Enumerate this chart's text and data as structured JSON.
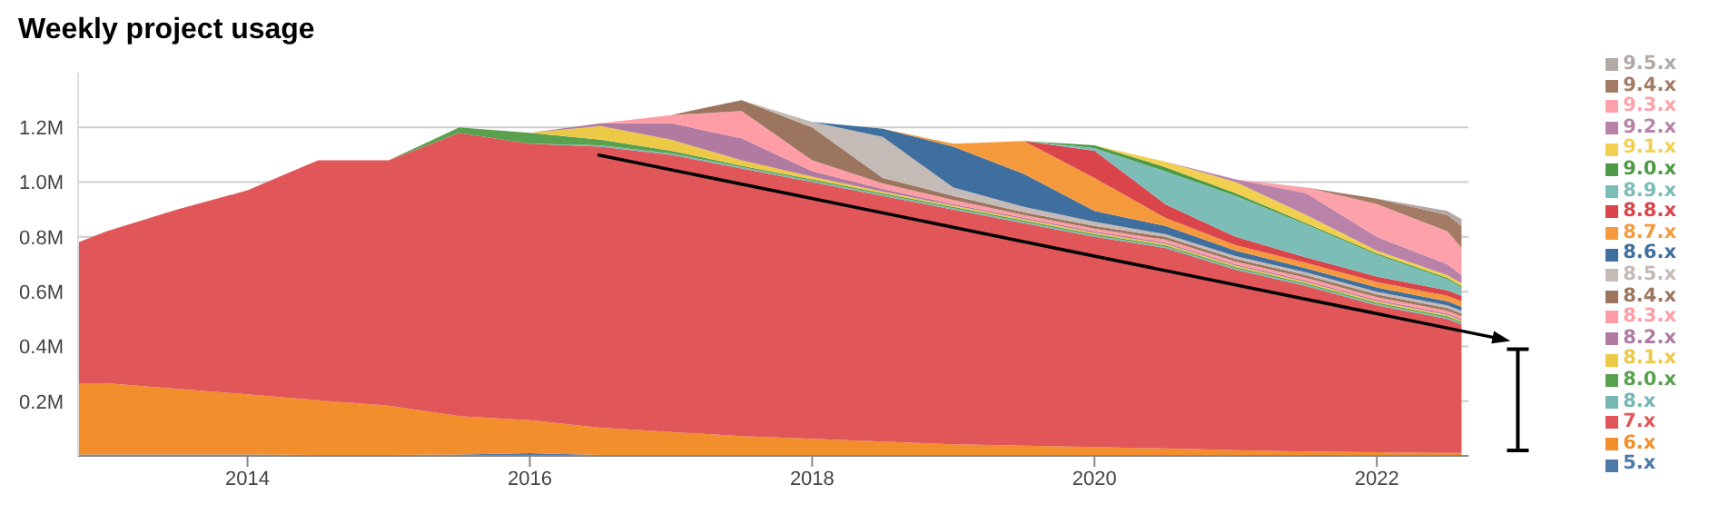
{
  "chart_data": {
    "type": "area",
    "title": "Weekly project usage",
    "stacked": true,
    "grid": "y",
    "legend": "right",
    "x": [
      2012.8,
      2013,
      2013.5,
      2014,
      2014.5,
      2015,
      2015.5,
      2016,
      2016.5,
      2017,
      2017.5,
      2018,
      2018.5,
      2019,
      2019.5,
      2020,
      2020.5,
      2021,
      2021.5,
      2022,
      2022.5,
      2022.6
    ],
    "xlim": [
      2012.8,
      2022.65
    ],
    "xticks": [
      2014,
      2016,
      2018,
      2020,
      2022
    ],
    "ylim": [
      0,
      1.4
    ],
    "yticks": [
      {
        "value": 0.2,
        "label": "0.2M"
      },
      {
        "value": 0.4,
        "label": "0.4M"
      },
      {
        "value": 0.6,
        "label": "0.6M"
      },
      {
        "value": 0.8,
        "label": "0.8M"
      },
      {
        "value": 1.0,
        "label": "1.0M"
      },
      {
        "value": 1.2,
        "label": "1.2M"
      }
    ],
    "series": [
      {
        "name": "5.x",
        "color": "#4e79a7",
        "values": [
          0.005,
          0.005,
          0.005,
          0.005,
          0.003,
          0.003,
          0.005,
          0.01,
          0.003,
          0.002,
          0.002,
          0.002,
          0.002,
          0.002,
          0.002,
          0.002,
          0.002,
          0.001,
          0.001,
          0.001,
          0.001,
          0.001
        ]
      },
      {
        "name": "6.x",
        "color": "#f28e2b",
        "values": [
          0.26,
          0.26,
          0.24,
          0.22,
          0.2,
          0.18,
          0.14,
          0.12,
          0.1,
          0.085,
          0.07,
          0.06,
          0.05,
          0.04,
          0.035,
          0.03,
          0.025,
          0.02,
          0.015,
          0.012,
          0.01,
          0.01
        ]
      },
      {
        "name": "7.x",
        "color": "#e15759",
        "values": [
          0.515,
          0.555,
          0.655,
          0.745,
          0.877,
          0.897,
          1.035,
          1.01,
          1.027,
          1.013,
          0.978,
          0.938,
          0.898,
          0.858,
          0.813,
          0.768,
          0.733,
          0.659,
          0.604,
          0.537,
          0.489,
          0.469
        ]
      },
      {
        "name": "8.x",
        "color": "#76b7b2",
        "values": [
          null,
          null,
          null,
          null,
          null,
          null,
          null,
          0,
          0.005,
          0.005,
          0.005,
          0.005,
          0.005,
          0.005,
          0.005,
          0.005,
          0.005,
          0.005,
          0.005,
          0.005,
          0.005,
          0.005
        ]
      },
      {
        "name": "8.0.x",
        "color": "#59a14f",
        "values": [
          null,
          null,
          null,
          null,
          null,
          0,
          0.02,
          0.04,
          0.02,
          0.01,
          0.005,
          0.005,
          0.005,
          0.005,
          0.005,
          0.005,
          0.005,
          0.005,
          0.005,
          0.005,
          0.005,
          0.005
        ]
      },
      {
        "name": "8.1.x",
        "color": "#edc948",
        "values": [
          null,
          null,
          null,
          null,
          null,
          null,
          null,
          0,
          0.05,
          0.04,
          0.02,
          0.01,
          0.005,
          0.005,
          0.005,
          0.005,
          0.005,
          0.005,
          0.005,
          0.005,
          0.005,
          0.005
        ]
      },
      {
        "name": "8.2.x",
        "color": "#b07aa1",
        "values": [
          null,
          null,
          null,
          null,
          null,
          null,
          null,
          0,
          0.01,
          0.06,
          0.08,
          0.02,
          0.01,
          0.005,
          0.005,
          0.005,
          0.005,
          0.005,
          0.005,
          0.005,
          0.005,
          0.005
        ]
      },
      {
        "name": "8.3.x",
        "color": "#ff9da7",
        "values": [
          null,
          null,
          null,
          null,
          null,
          null,
          null,
          null,
          0,
          0.03,
          0.1,
          0.04,
          0.02,
          0.015,
          0.01,
          0.01,
          0.01,
          0.01,
          0.01,
          0.01,
          0.01,
          0.01
        ]
      },
      {
        "name": "8.4.x",
        "color": "#9c755f",
        "values": [
          null,
          null,
          null,
          null,
          null,
          null,
          null,
          null,
          null,
          0,
          0.04,
          0.12,
          0.02,
          0.015,
          0.01,
          0.01,
          0.01,
          0.01,
          0.01,
          0.01,
          0.01,
          0.01
        ]
      },
      {
        "name": "8.5.x",
        "color": "#c4bab6",
        "values": [
          null,
          null,
          null,
          null,
          null,
          null,
          null,
          null,
          null,
          null,
          0,
          0.02,
          0.15,
          0.03,
          0.02,
          0.015,
          0.01,
          0.01,
          0.01,
          0.01,
          0.01,
          0.01
        ]
      },
      {
        "name": "8.6.x",
        "color": "#3f6f9f",
        "values": [
          null,
          null,
          null,
          null,
          null,
          null,
          null,
          null,
          null,
          null,
          null,
          0,
          0.03,
          0.15,
          0.12,
          0.04,
          0.03,
          0.02,
          0.015,
          0.015,
          0.015,
          0.015
        ]
      },
      {
        "name": "8.7.x",
        "color": "#f59a3c",
        "values": [
          null,
          null,
          null,
          null,
          null,
          null,
          null,
          null,
          null,
          null,
          null,
          null,
          0,
          0.01,
          0.12,
          0.12,
          0.03,
          0.02,
          0.02,
          0.02,
          0.02,
          0.02
        ]
      },
      {
        "name": "8.8.x",
        "color": "#d9454b",
        "values": [
          null,
          null,
          null,
          null,
          null,
          null,
          null,
          null,
          null,
          null,
          null,
          null,
          null,
          null,
          0,
          0.1,
          0.05,
          0.03,
          0.02,
          0.02,
          0.02,
          0.02
        ]
      },
      {
        "name": "8.9.x",
        "color": "#7dbdb8",
        "values": [
          null,
          null,
          null,
          null,
          null,
          null,
          null,
          null,
          null,
          null,
          null,
          null,
          null,
          null,
          0,
          0.01,
          0.12,
          0.15,
          0.12,
          0.08,
          0.04,
          0.03
        ]
      },
      {
        "name": "9.0.x",
        "color": "#4c9a45",
        "values": [
          null,
          null,
          null,
          null,
          null,
          null,
          null,
          null,
          null,
          null,
          null,
          null,
          null,
          null,
          0,
          0.01,
          0.015,
          0.01,
          0.005,
          0.005,
          0.005,
          0.005
        ]
      },
      {
        "name": "9.1.x",
        "color": "#f2d04f",
        "values": [
          null,
          null,
          null,
          null,
          null,
          null,
          null,
          null,
          null,
          null,
          null,
          null,
          null,
          null,
          null,
          0,
          0.02,
          0.04,
          0.03,
          0.01,
          0.01,
          0.01
        ]
      },
      {
        "name": "9.2.x",
        "color": "#b983a9",
        "values": [
          null,
          null,
          null,
          null,
          null,
          null,
          null,
          null,
          null,
          null,
          null,
          null,
          null,
          null,
          null,
          null,
          0,
          0.01,
          0.08,
          0.05,
          0.04,
          0.03
        ]
      },
      {
        "name": "9.3.x",
        "color": "#fda1ab",
        "values": [
          null,
          null,
          null,
          null,
          null,
          null,
          null,
          null,
          null,
          null,
          null,
          null,
          null,
          null,
          null,
          null,
          null,
          0,
          0.02,
          0.12,
          0.12,
          0.1
        ]
      },
      {
        "name": "9.4.x",
        "color": "#a47c66",
        "values": [
          null,
          null,
          null,
          null,
          null,
          null,
          null,
          null,
          null,
          null,
          null,
          null,
          null,
          null,
          null,
          null,
          null,
          null,
          0,
          0.02,
          0.06,
          0.08
        ]
      },
      {
        "name": "9.5.x",
        "color": "#b3aaa6",
        "values": [
          null,
          null,
          null,
          null,
          null,
          null,
          null,
          null,
          null,
          null,
          null,
          null,
          null,
          null,
          null,
          null,
          null,
          null,
          null,
          0,
          0.015,
          0.025
        ]
      }
    ]
  }
}
